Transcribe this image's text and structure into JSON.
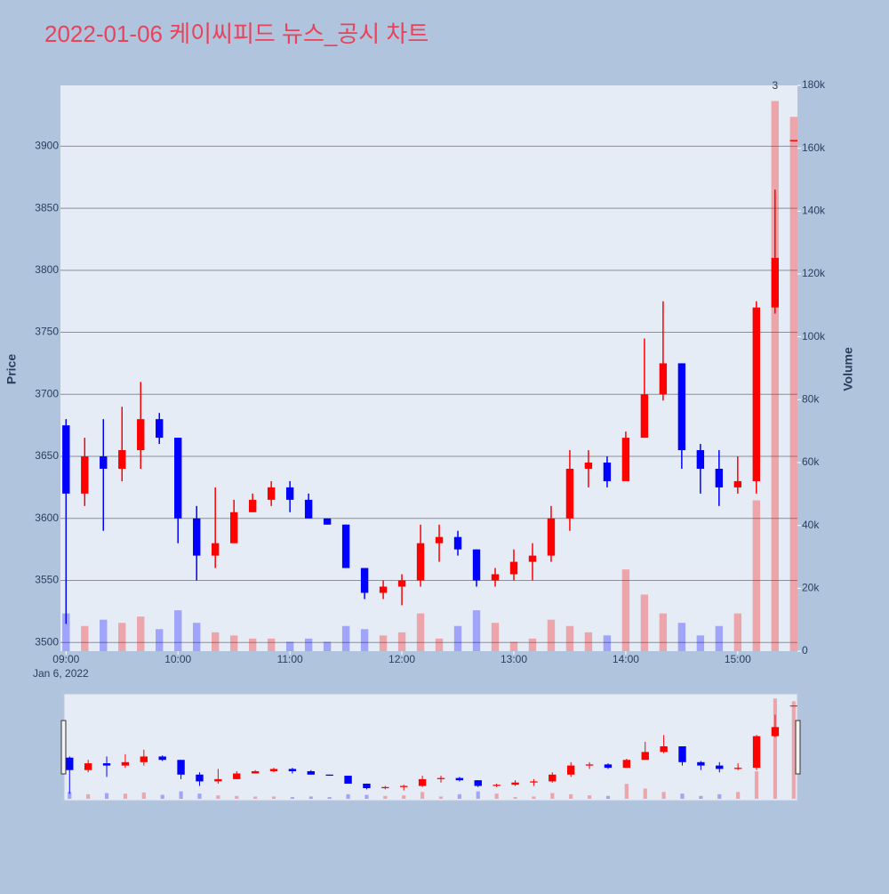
{
  "chart_data": {
    "type": "candlestick",
    "title": "2022-01-06 케이씨피드 뉴스_공시 차트",
    "x": [
      "09:00",
      "09:10",
      "09:20",
      "09:30",
      "09:40",
      "09:50",
      "10:00",
      "10:10",
      "10:20",
      "10:30",
      "10:40",
      "10:50",
      "11:00",
      "11:10",
      "11:20",
      "11:30",
      "11:40",
      "11:50",
      "12:00",
      "12:10",
      "12:20",
      "12:30",
      "12:40",
      "12:50",
      "13:00",
      "13:10",
      "13:20",
      "13:30",
      "13:40",
      "13:50",
      "14:00",
      "14:10",
      "14:20",
      "14:30",
      "14:40",
      "14:50",
      "15:00",
      "15:10",
      "15:20",
      "15:30"
    ],
    "open": [
      3675,
      3620,
      3650,
      3640,
      3655,
      3680,
      3665,
      3600,
      3570,
      3580,
      3605,
      3615,
      3625,
      3615,
      3600,
      3595,
      3560,
      3540,
      3545,
      3550,
      3580,
      3585,
      3575,
      3550,
      3555,
      3565,
      3570,
      3600,
      3640,
      3645,
      3630,
      3665,
      3700,
      3725,
      3655,
      3640,
      3625,
      3630,
      3770,
      3905
    ],
    "high": [
      3680,
      3665,
      3680,
      3690,
      3710,
      3685,
      3665,
      3610,
      3625,
      3615,
      3620,
      3630,
      3630,
      3620,
      3600,
      3595,
      3560,
      3550,
      3555,
      3595,
      3595,
      3590,
      3575,
      3560,
      3575,
      3580,
      3610,
      3655,
      3655,
      3650,
      3670,
      3745,
      3775,
      3725,
      3660,
      3655,
      3650,
      3775,
      3865,
      3905
    ],
    "low": [
      3515,
      3610,
      3590,
      3630,
      3640,
      3660,
      3580,
      3550,
      3560,
      3580,
      3605,
      3610,
      3605,
      3600,
      3595,
      3560,
      3535,
      3535,
      3530,
      3545,
      3565,
      3570,
      3545,
      3545,
      3550,
      3550,
      3565,
      3590,
      3625,
      3625,
      3630,
      3665,
      3695,
      3640,
      3620,
      3610,
      3620,
      3620,
      3765,
      3905
    ],
    "close": [
      3620,
      3650,
      3640,
      3655,
      3680,
      3665,
      3600,
      3570,
      3580,
      3605,
      3615,
      3625,
      3615,
      3600,
      3595,
      3560,
      3540,
      3545,
      3550,
      3580,
      3585,
      3575,
      3550,
      3555,
      3565,
      3570,
      3600,
      3640,
      3645,
      3630,
      3665,
      3700,
      3725,
      3655,
      3640,
      3625,
      3630,
      3770,
      3810,
      3905
    ],
    "volume": [
      12000,
      8000,
      10000,
      9000,
      11000,
      7000,
      13000,
      9000,
      6000,
      5000,
      4000,
      4000,
      3000,
      4000,
      3000,
      8000,
      7000,
      5000,
      6000,
      12000,
      4000,
      8000,
      13000,
      9000,
      3000,
      4000,
      10000,
      8000,
      6000,
      5000,
      26000,
      18000,
      12000,
      9000,
      5000,
      8000,
      12000,
      48000,
      175000,
      170000
    ],
    "increasing_color": "#ff0000",
    "decreasing_color": "#0000ff",
    "xlim": [
      "08:57",
      "15:32"
    ],
    "xticks": [
      "09:00",
      "10:00",
      "11:00",
      "12:00",
      "13:00",
      "14:00",
      "15:00"
    ],
    "x_date_label": "Jan 6, 2022",
    "ylim": [
      3493,
      3949
    ],
    "yticks": [
      3500,
      3550,
      3600,
      3650,
      3700,
      3750,
      3800,
      3850,
      3900
    ],
    "y2lim": [
      0,
      180000
    ],
    "y2ticks": [
      0,
      {
        "value": 20000,
        "label": "20k"
      },
      {
        "value": 40000,
        "label": "40k"
      },
      {
        "value": 60000,
        "label": "60k"
      },
      {
        "value": 80000,
        "label": "80k"
      },
      {
        "value": 100000,
        "label": "100k"
      },
      {
        "value": 120000,
        "label": "120k"
      },
      {
        "value": 140000,
        "label": "140k"
      },
      {
        "value": 160000,
        "label": "160k"
      },
      {
        "value": 180000,
        "label": "180k"
      }
    ],
    "ylabel": "Price",
    "y2label": "Volume",
    "annotation": {
      "x": "15:20",
      "text": "3"
    },
    "grid": true,
    "rangeslider": true
  }
}
